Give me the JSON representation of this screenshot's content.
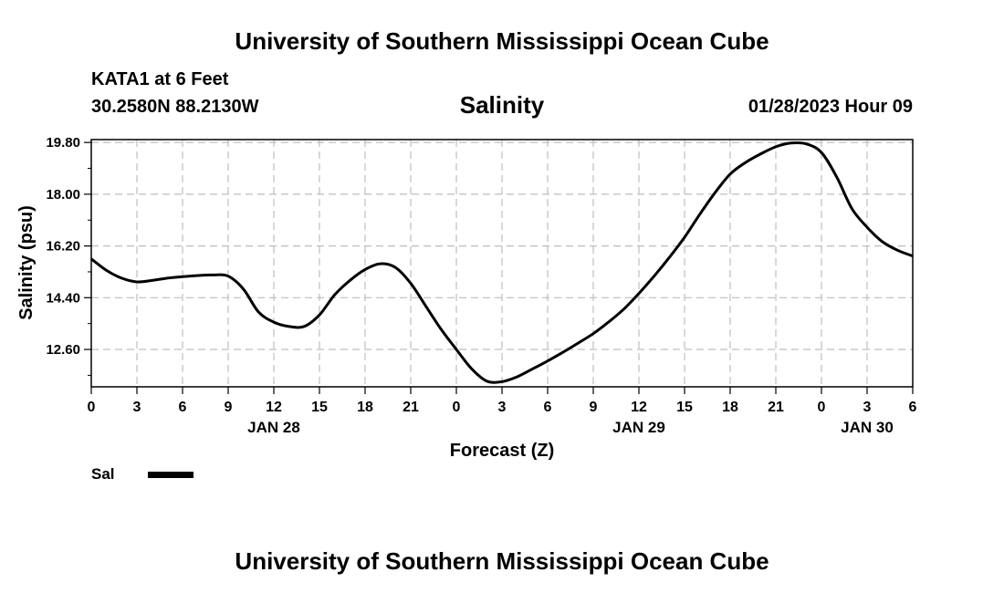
{
  "header": {
    "institution_title": "University of Southern Mississippi Ocean Cube",
    "station": "KATA1 at 6 Feet",
    "coordinates": "30.2580N  88.2130W",
    "date_hour": "01/28/2023 Hour 09",
    "footer_title": "University of Southern Mississippi Ocean Cube"
  },
  "legend": {
    "label": "Sal",
    "color": "#000000"
  },
  "chart_data": {
    "type": "line",
    "title": "Salinity",
    "xlabel": "Forecast (Z)",
    "ylabel": "Salinity (psu)",
    "xlim": [
      0,
      54
    ],
    "ylim": [
      11.3,
      19.9
    ],
    "x_tick_labels": [
      "0",
      "3",
      "6",
      "9",
      "12",
      "15",
      "18",
      "21",
      "0",
      "3",
      "6",
      "9",
      "12",
      "15",
      "18",
      "21",
      "0",
      "3",
      "6"
    ],
    "y_ticks": [
      19.8,
      18.0,
      16.2,
      14.4,
      12.6
    ],
    "y_tick_labels": [
      "19.80",
      "18.00",
      "16.20",
      "14.40",
      "12.60"
    ],
    "date_labels": [
      {
        "hour": 12,
        "label": "JAN 28"
      },
      {
        "hour": 36,
        "label": "JAN 29"
      },
      {
        "hour": 51,
        "label": "JAN 30"
      }
    ],
    "grid": true,
    "series": [
      {
        "name": "Sal",
        "color": "#000000",
        "x": [
          0,
          1,
          2,
          3,
          4,
          5,
          6,
          7,
          8,
          9,
          10,
          11,
          12,
          13,
          14,
          15,
          16,
          17,
          18,
          19,
          20,
          21,
          22,
          23,
          24,
          25,
          26,
          27,
          28,
          29,
          30,
          31,
          32,
          33,
          34,
          35,
          36,
          37,
          38,
          39,
          40,
          41,
          42,
          43,
          44,
          45,
          46,
          47,
          48,
          49,
          50,
          51,
          52,
          53,
          54
        ],
        "values": [
          15.75,
          15.35,
          15.08,
          14.95,
          15.0,
          15.08,
          15.13,
          15.17,
          15.19,
          15.15,
          14.7,
          13.9,
          13.55,
          13.4,
          13.4,
          13.8,
          14.5,
          15.0,
          15.38,
          15.58,
          15.45,
          14.9,
          14.1,
          13.3,
          12.6,
          11.93,
          11.5,
          11.48,
          11.65,
          11.92,
          12.2,
          12.5,
          12.82,
          13.15,
          13.55,
          14.0,
          14.55,
          15.15,
          15.8,
          16.5,
          17.3,
          18.05,
          18.7,
          19.1,
          19.4,
          19.65,
          19.78,
          19.75,
          19.45,
          18.6,
          17.5,
          16.85,
          16.35,
          16.05,
          15.85
        ]
      }
    ]
  }
}
